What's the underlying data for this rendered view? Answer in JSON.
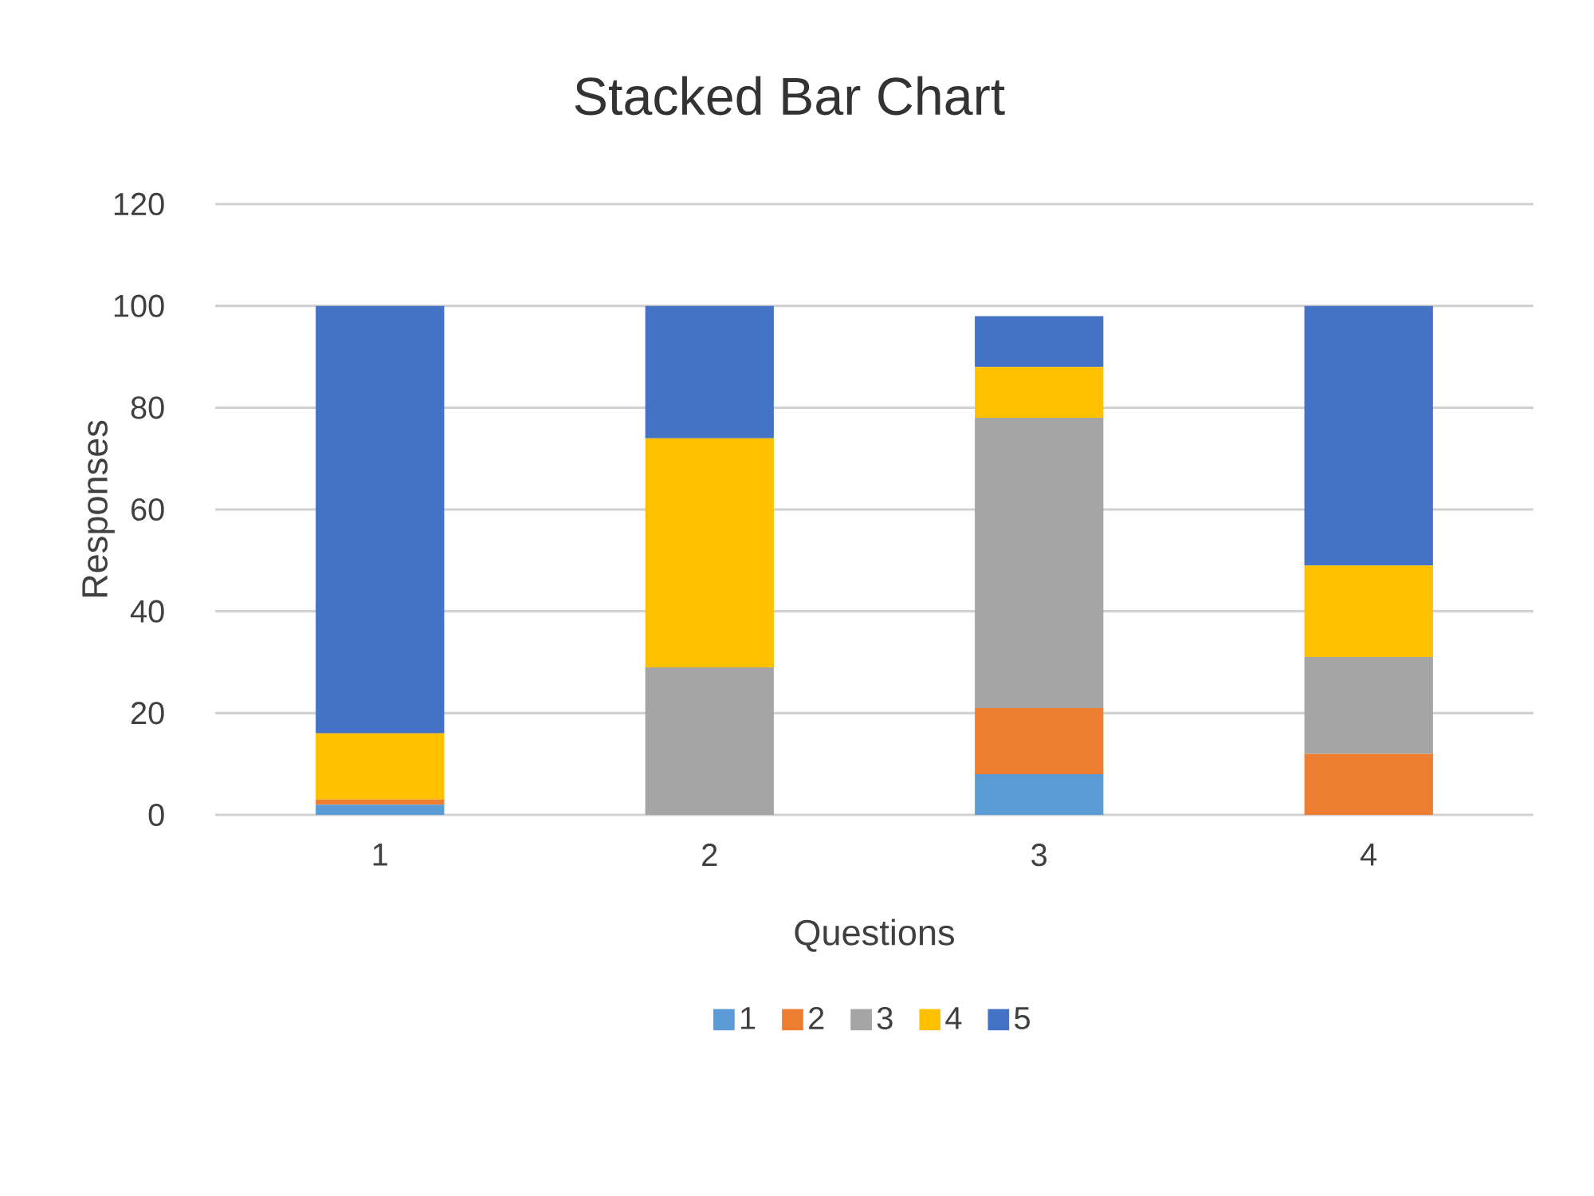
{
  "chart_data": {
    "type": "bar",
    "title": "Stacked Bar Chart",
    "xlabel": "Questions",
    "ylabel": "Responses",
    "categories": [
      "1",
      "2",
      "3",
      "4"
    ],
    "series": [
      {
        "name": "1",
        "color": "#5b9bd5",
        "values": [
          2,
          0,
          8,
          0
        ]
      },
      {
        "name": "2",
        "color": "#ed7d31",
        "values": [
          1,
          0,
          13,
          12
        ]
      },
      {
        "name": "3",
        "color": "#a5a5a5",
        "values": [
          0,
          29,
          57,
          19
        ]
      },
      {
        "name": "4",
        "color": "#ffc000",
        "values": [
          13,
          45,
          10,
          18
        ]
      },
      {
        "name": "5",
        "color": "#4472c4",
        "values": [
          84,
          26,
          10,
          51
        ]
      }
    ],
    "stacked": true,
    "ylim": [
      0,
      120
    ],
    "yticks": [
      0,
      20,
      40,
      60,
      80,
      100,
      120
    ],
    "grid": "y",
    "legend": "bottom"
  }
}
